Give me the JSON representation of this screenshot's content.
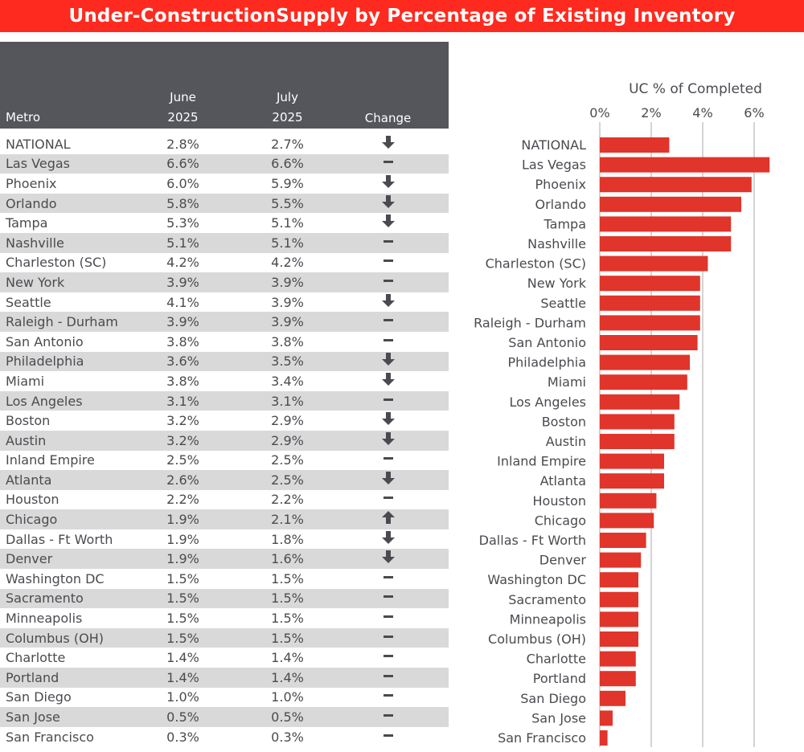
{
  "title": "Under-ConstructionSupply by Percentage of Existing Inventory",
  "table": {
    "headers": {
      "metro": "Metro",
      "june_l1": "June",
      "june_l2": "2025",
      "july_l1": "July",
      "july_l2": "2025",
      "change": "Change"
    },
    "rows": [
      [
        "NATIONAL",
        "2.8%",
        "2.7%",
        "down"
      ],
      [
        "Las Vegas",
        "6.6%",
        "6.6%",
        "flat"
      ],
      [
        "Phoenix",
        "6.0%",
        "5.9%",
        "down"
      ],
      [
        "Orlando",
        "5.8%",
        "5.5%",
        "down"
      ],
      [
        "Tampa",
        "5.3%",
        "5.1%",
        "down"
      ],
      [
        "Nashville",
        "5.1%",
        "5.1%",
        "flat"
      ],
      [
        "Charleston (SC)",
        "4.2%",
        "4.2%",
        "flat"
      ],
      [
        "New York",
        "3.9%",
        "3.9%",
        "flat"
      ],
      [
        "Seattle",
        "4.1%",
        "3.9%",
        "down"
      ],
      [
        "Raleigh - Durham",
        "3.9%",
        "3.9%",
        "flat"
      ],
      [
        "San Antonio",
        "3.8%",
        "3.8%",
        "flat"
      ],
      [
        "Philadelphia",
        "3.6%",
        "3.5%",
        "down"
      ],
      [
        "Miami",
        "3.8%",
        "3.4%",
        "down"
      ],
      [
        "Los Angeles",
        "3.1%",
        "3.1%",
        "flat"
      ],
      [
        "Boston",
        "3.2%",
        "2.9%",
        "down"
      ],
      [
        "Austin",
        "3.2%",
        "2.9%",
        "down"
      ],
      [
        "Inland Empire",
        "2.5%",
        "2.5%",
        "flat"
      ],
      [
        "Atlanta",
        "2.6%",
        "2.5%",
        "down"
      ],
      [
        "Houston",
        "2.2%",
        "2.2%",
        "flat"
      ],
      [
        "Chicago",
        "1.9%",
        "2.1%",
        "up"
      ],
      [
        "Dallas - Ft Worth",
        "1.9%",
        "1.8%",
        "down"
      ],
      [
        "Denver",
        "1.9%",
        "1.6%",
        "down"
      ],
      [
        "Washington DC",
        "1.5%",
        "1.5%",
        "flat"
      ],
      [
        "Sacramento",
        "1.5%",
        "1.5%",
        "flat"
      ],
      [
        "Minneapolis",
        "1.5%",
        "1.5%",
        "flat"
      ],
      [
        "Columbus (OH)",
        "1.5%",
        "1.5%",
        "flat"
      ],
      [
        "Charlotte",
        "1.4%",
        "1.4%",
        "flat"
      ],
      [
        "Portland",
        "1.4%",
        "1.4%",
        "flat"
      ],
      [
        "San Diego",
        "1.0%",
        "1.0%",
        "flat"
      ],
      [
        "San Jose",
        "0.5%",
        "0.5%",
        "flat"
      ],
      [
        "San Francisco",
        "0.3%",
        "0.3%",
        "flat"
      ]
    ]
  },
  "chart_data": {
    "type": "bar",
    "orientation": "horizontal",
    "title": "UC % of Completed",
    "xlim": [
      0,
      6.8
    ],
    "xticks": [
      0,
      2,
      4,
      6
    ],
    "xtick_labels": [
      "0%",
      "2%",
      "4%",
      "6%"
    ],
    "grid": true,
    "categories": [
      "NATIONAL",
      "Las Vegas",
      "Phoenix",
      "Orlando",
      "Tampa",
      "Nashville",
      "Charleston (SC)",
      "New York",
      "Seattle",
      "Raleigh - Durham",
      "San Antonio",
      "Philadelphia",
      "Miami",
      "Los Angeles",
      "Boston",
      "Austin",
      "Inland Empire",
      "Atlanta",
      "Houston",
      "Chicago",
      "Dallas - Ft Worth",
      "Denver",
      "Washington DC",
      "Sacramento",
      "Minneapolis",
      "Columbus (OH)",
      "Charlotte",
      "Portland",
      "San Diego",
      "San Jose",
      "San Francisco"
    ],
    "values": [
      2.7,
      6.6,
      5.9,
      5.5,
      5.1,
      5.1,
      4.2,
      3.9,
      3.9,
      3.9,
      3.8,
      3.5,
      3.4,
      3.1,
      2.9,
      2.9,
      2.5,
      2.5,
      2.2,
      2.1,
      1.8,
      1.6,
      1.5,
      1.5,
      1.5,
      1.5,
      1.4,
      1.4,
      1.0,
      0.5,
      0.3
    ],
    "bar_color": "#e1342a"
  },
  "colors": {
    "title_bg": "#ff2a1f",
    "header_bg": "#55565b",
    "alt_row": "#d9d9d9"
  },
  "icons": {
    "down": "arrow-down-icon",
    "up": "arrow-up-icon",
    "flat": "dash-icon"
  }
}
